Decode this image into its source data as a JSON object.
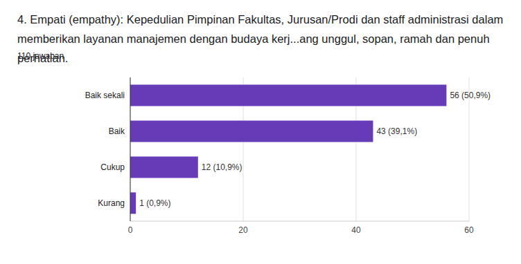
{
  "chart_data": {
    "type": "bar",
    "title": "4. Empati (empathy):  Kepedulian Pimpinan Fakultas, Jurusan/Prodi dan staff administrasi dalam memberikan layanan manajemen dengan budaya kerj...ang unggul, sopan, ramah dan penuh perhatian.",
    "subtitle": "110 jawaban",
    "categories": [
      "Baik sekali",
      "Baik",
      "Cukup",
      "Kurang"
    ],
    "values": [
      56,
      43,
      12,
      1
    ],
    "value_labels": [
      "56 (50,9%)",
      "43 (39,1%)",
      "12 (10,9%)",
      "1 (0,9%)"
    ],
    "data_labels": true,
    "color": "#673ab7",
    "orientation": "horizontal",
    "xlim": [
      0,
      60
    ],
    "xticks": [
      0,
      20,
      40,
      60
    ],
    "grid": true
  }
}
